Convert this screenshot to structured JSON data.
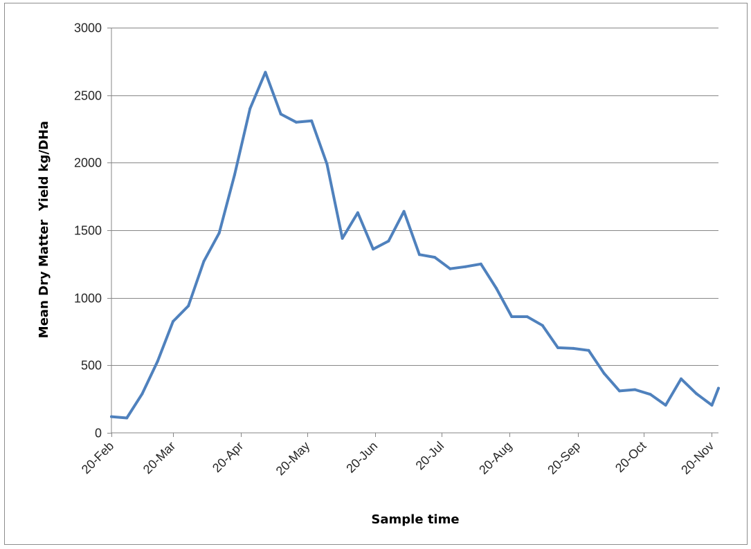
{
  "chart_data": {
    "type": "line",
    "title": "",
    "xlabel": "Sample time",
    "ylabel": "Mean Dry Matter  Yield kg/DHa",
    "x_axis": {
      "kind": "date",
      "tick_labels": [
        "20-Feb",
        "20-Mar",
        "20-Apr",
        "20-May",
        "20-Jun",
        "20-Jul",
        "20-Aug",
        "20-Sep",
        "20-Oct",
        "20-Nov"
      ],
      "tick_dates": [
        "02-20",
        "03-20",
        "04-20",
        "05-20",
        "06-20",
        "07-20",
        "08-20",
        "09-20",
        "10-20",
        "11-20"
      ],
      "range": [
        "02-20",
        "11-23"
      ]
    },
    "y_axis": {
      "ylim": [
        0,
        3000
      ],
      "ticks": [
        0,
        500,
        1000,
        1500,
        2000,
        2500,
        3000
      ]
    },
    "grid": "horizontal",
    "legend": "none",
    "series": [
      {
        "color": "#4f81bd",
        "x": [
          "02-20",
          "02-27",
          "03-06",
          "03-13",
          "03-20",
          "03-27",
          "04-03",
          "04-10",
          "04-17",
          "04-24",
          "05-01",
          "05-08",
          "05-15",
          "05-22",
          "05-29",
          "06-05",
          "06-12",
          "06-19",
          "06-26",
          "07-03",
          "07-10",
          "07-17",
          "07-24",
          "07-31",
          "08-07",
          "08-14",
          "08-21",
          "08-28",
          "09-04",
          "09-11",
          "09-18",
          "09-25",
          "10-02",
          "10-09",
          "10-16",
          "10-23",
          "10-30",
          "11-06",
          "11-13",
          "11-20",
          "11-23"
        ],
        "values": [
          120,
          110,
          290,
          530,
          825,
          940,
          1270,
          1480,
          1910,
          2400,
          2670,
          2360,
          2300,
          2310,
          1990,
          1440,
          1630,
          1360,
          1420,
          1640,
          1320,
          1300,
          1215,
          1230,
          1250,
          1070,
          860,
          860,
          795,
          630,
          625,
          610,
          440,
          310,
          320,
          285,
          205,
          400,
          290,
          205,
          330
        ]
      }
    ]
  }
}
